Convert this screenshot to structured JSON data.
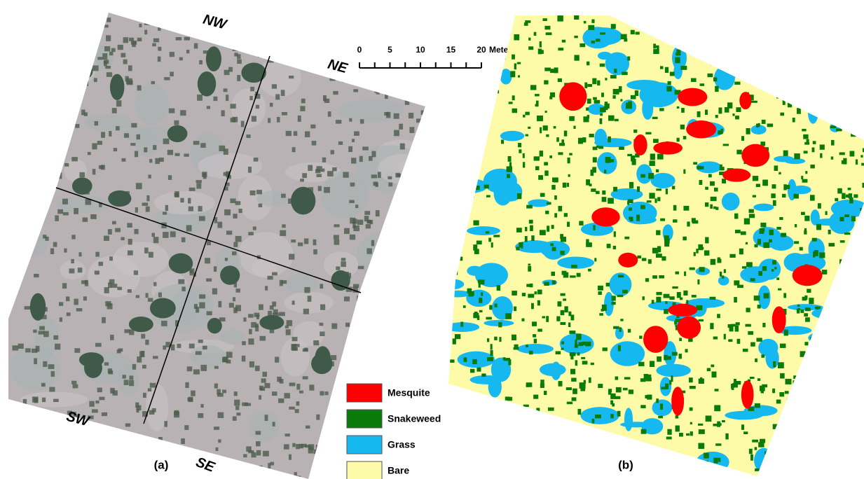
{
  "panel_a": {
    "label": "(a)",
    "quadrants": [
      "NW",
      "NE",
      "SW",
      "SE"
    ]
  },
  "panel_b": {
    "label": "(b)"
  },
  "scale_bar": {
    "ticks": [
      "0",
      "5",
      "10",
      "15",
      "20"
    ],
    "unit": "Meters"
  },
  "legend": [
    {
      "label": "Mesquite",
      "color": "#ff0000"
    },
    {
      "label": "Snakeweed",
      "color": "#0a7a0a"
    },
    {
      "label": "Grass",
      "color": "#16b8f0"
    },
    {
      "label": "Bare",
      "color": "#fdfba8"
    }
  ]
}
